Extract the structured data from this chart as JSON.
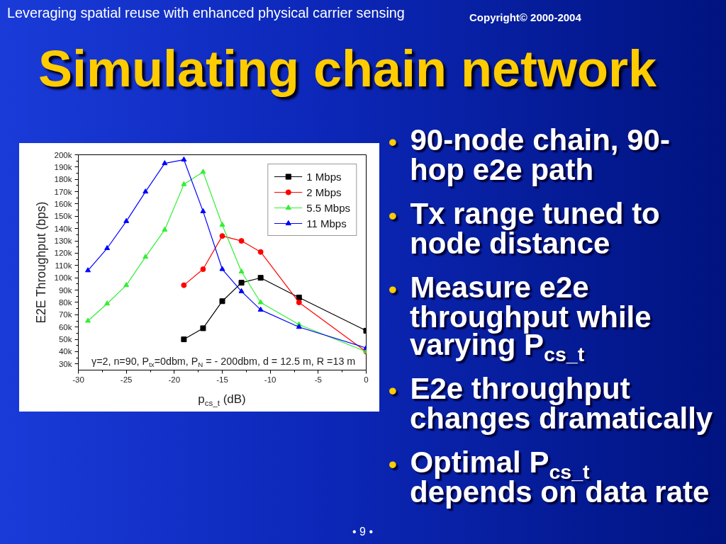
{
  "chart_data": {
    "type": "line",
    "title": "Simulating chain network",
    "xlabel": "p$_{cs_t}$ (dB)",
    "ylabel": "E2E Throughput (bps)",
    "xlim": [
      -30,
      0
    ],
    "xticks": [
      -30,
      {
        "value": -27.5,
        "label": null
      },
      -25,
      {
        "value": -22.5,
        "label": null
      },
      -20,
      {
        "value": -17.5,
        "label": null
      },
      -15,
      {
        "value": -12.5,
        "label": null
      },
      -10,
      {
        "value": -7.5,
        "label": null
      },
      -5,
      {
        "value": -2.5,
        "label": null
      },
      0
    ],
    "ylim": [
      25000,
      200000
    ],
    "yticks": [
      {
        "value": 30000,
        "label": "30k"
      },
      {
        "value": 35000,
        "label": null
      },
      {
        "value": 40000,
        "label": "40k"
      },
      {
        "value": 45000,
        "label": null
      },
      {
        "value": 50000,
        "label": "50k"
      },
      {
        "value": 55000,
        "label": null
      },
      {
        "value": 60000,
        "label": "60k"
      },
      {
        "value": 65000,
        "label": null
      },
      {
        "value": 70000,
        "label": "70k"
      },
      {
        "value": 75000,
        "label": null
      },
      {
        "value": 80000,
        "label": "80k"
      },
      {
        "value": 85000,
        "label": null
      },
      {
        "value": 90000,
        "label": "90k"
      },
      {
        "value": 95000,
        "label": null
      },
      {
        "value": 100000,
        "label": "100k"
      },
      {
        "value": 105000,
        "label": null
      },
      {
        "value": 110000,
        "label": "110k"
      },
      {
        "value": 115000,
        "label": null
      },
      {
        "value": 120000,
        "label": "120k"
      },
      {
        "value": 125000,
        "label": null
      },
      {
        "value": 130000,
        "label": "130k"
      },
      {
        "value": 135000,
        "label": null
      },
      {
        "value": 140000,
        "label": "140k"
      },
      {
        "value": 145000,
        "label": null
      },
      {
        "value": 150000,
        "label": "150k"
      },
      {
        "value": 155000,
        "label": null
      },
      {
        "value": 160000,
        "label": "160k"
      },
      {
        "value": 165000,
        "label": null
      },
      {
        "value": 170000,
        "label": "170k"
      },
      {
        "value": 175000,
        "label": null
      },
      {
        "value": 180000,
        "label": "180k"
      },
      {
        "value": 185000,
        "label": null
      },
      {
        "value": 190000,
        "label": "190k"
      },
      {
        "value": 195000,
        "label": null
      },
      {
        "value": 200000,
        "label": "200k"
      }
    ],
    "series": [
      {
        "name": "1 Mbps",
        "color": "#000000",
        "marker": "square",
        "x": [
          -19,
          -17,
          -15,
          -13,
          -11,
          -7,
          0
        ],
        "values": [
          50000,
          59000,
          81000,
          96000,
          100000,
          84000,
          57000
        ]
      },
      {
        "name": "2 Mbps",
        "color": "#ff0000",
        "marker": "circle",
        "x": [
          -19,
          -17,
          -15,
          -13,
          -11,
          -7,
          0
        ],
        "values": [
          94000,
          107000,
          134000,
          130000,
          121000,
          80000,
          40000
        ]
      },
      {
        "name": "5.5 Mbps",
        "color": "#33ee33",
        "marker": "triangle",
        "x": [
          -29,
          -27,
          -25,
          -23,
          -21,
          -19,
          -17,
          -15,
          -13,
          -11,
          -7,
          0
        ],
        "values": [
          65000,
          79000,
          94000,
          117000,
          139000,
          176000,
          186000,
          143000,
          105000,
          80000,
          62000,
          40000
        ]
      },
      {
        "name": "11 Mbps",
        "color": "#0000ff",
        "marker": "triangle",
        "x": [
          -29,
          -27,
          -25,
          -23,
          -21,
          -19,
          -17,
          -15,
          -13,
          -11,
          -7,
          0
        ],
        "values": [
          106000,
          124000,
          146000,
          170000,
          193000,
          196000,
          154000,
          107000,
          89000,
          74000,
          60000,
          43000
        ]
      }
    ],
    "legend": "top right",
    "annotations": [
      "Leveraging spatial reuse with enhanced physical carrier sensing",
      "Copyright© 2000-2004",
      "• 90-node chain, 90-hop e2e path",
      "• Tx range tuned to node distance",
      "• Measure e2e throughput while varying P$_{cs_t}$",
      "• E2e throughput changes dramatically",
      "• Optimal P$_{cs_t}$ depends on data rate",
      "γ=2, n=90, P$_{tx}$=0dbm, P$_{N}$ = - 200dbm, d = 12.5 m, R =13 m",
      "• 9 •"
    ]
  }
}
